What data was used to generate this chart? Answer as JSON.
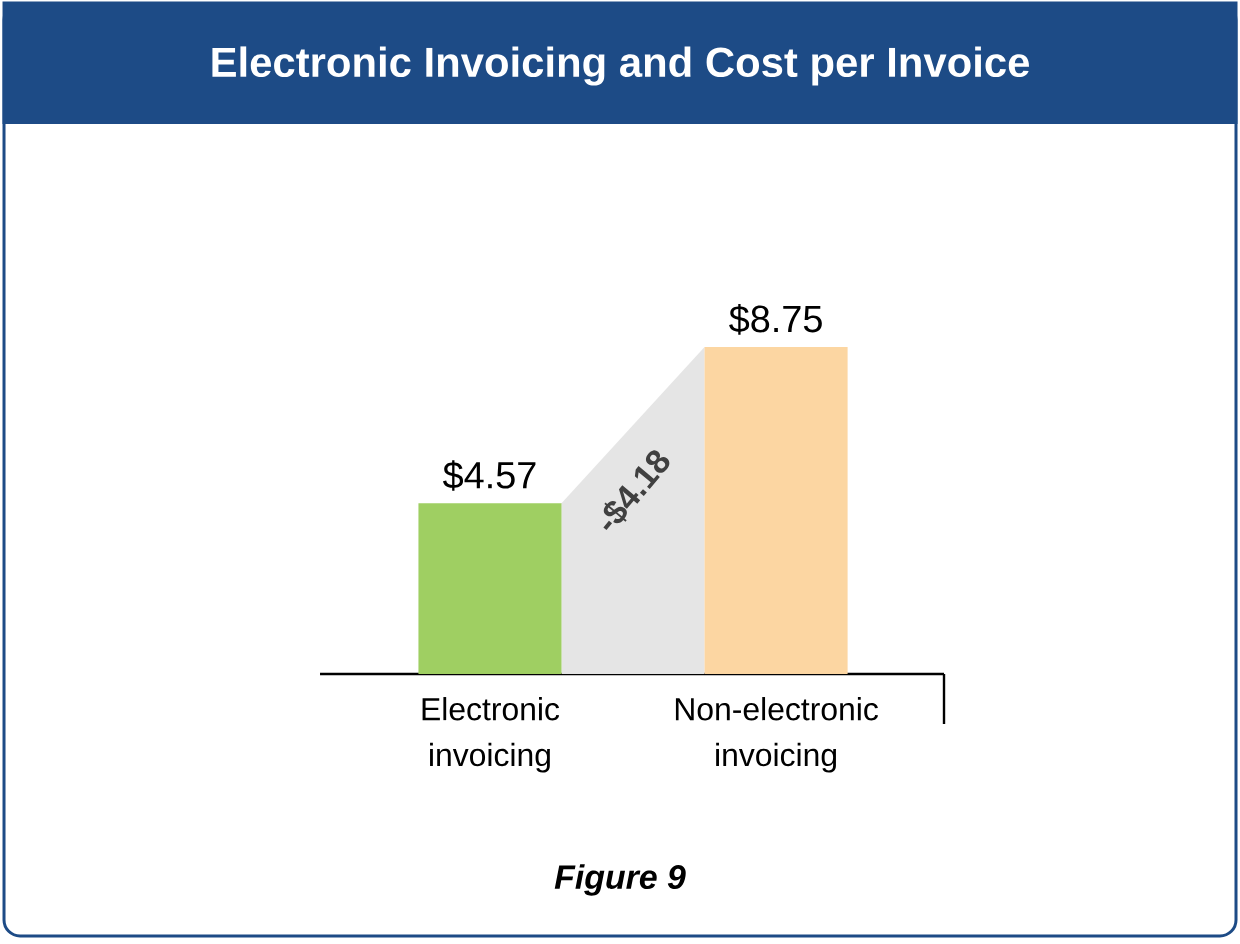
{
  "chart_data": {
    "type": "bar",
    "title": "Electronic Invoicing and Cost per Invoice",
    "categories": [
      "Electronic invoicing",
      "Non-electronic invoicing"
    ],
    "values": [
      4.57,
      8.75
    ],
    "colors": [
      "#9fcf62",
      "#fcd6a2"
    ],
    "value_labels": [
      "$4.57",
      "$8.75"
    ],
    "annotations": [
      "-$4.18",
      "Figure 9"
    ],
    "tick_labels": "x"
  }
}
